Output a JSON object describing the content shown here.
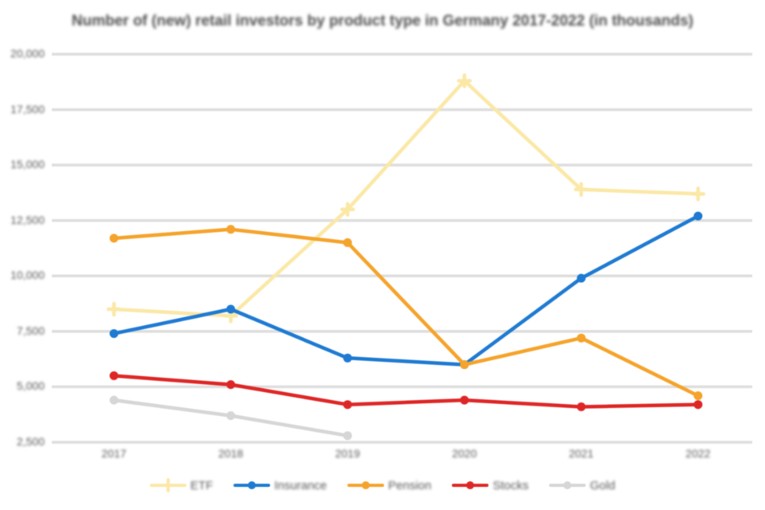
{
  "chart": {
    "title": "Number of (new) retail investors by product type in Germany 2017-2022 (in thousands)",
    "background_color": "#ffffff",
    "title_color": "#4f4f4f",
    "axis_text_color": "#595959",
    "gridline_color": "#dedede"
  },
  "chart_data": {
    "type": "line",
    "title": "Number of (new) retail investors by product type in Germany 2017-2022 (in thousands)",
    "categories": [
      "2017",
      "2018",
      "2019",
      "2020",
      "2021",
      "2022"
    ],
    "series": [
      {
        "name": "ETF",
        "color": "#FBE8A6",
        "marker": "plus",
        "values": [
          8500,
          8200,
          13000,
          18800,
          13900,
          13700
        ]
      },
      {
        "name": "Insurance",
        "color": "#1E7AD2",
        "marker": "circle",
        "values": [
          7400,
          8500,
          6300,
          6000,
          9900,
          12700
        ]
      },
      {
        "name": "Pension",
        "color": "#F5A32A",
        "marker": "circle",
        "values": [
          11700,
          12100,
          11500,
          6000,
          7200,
          4600
        ]
      },
      {
        "name": "Stocks",
        "color": "#DF2626",
        "marker": "circle",
        "values": [
          5500,
          5100,
          4200,
          4400,
          4100,
          4200
        ]
      },
      {
        "name": "Gold",
        "color": "#D6D6D6",
        "marker": "circle",
        "values": [
          4400,
          3700,
          2800,
          null,
          null,
          null
        ]
      }
    ],
    "ylim": [
      2500,
      20000
    ],
    "ytick_step": 2500,
    "ytick_labels": [
      "2,500",
      "5,000",
      "7,500",
      "10,000",
      "12,500",
      "15,000",
      "17,500",
      "20,000"
    ],
    "xlabel": "",
    "ylabel": "",
    "grid": "horizontal",
    "legend_position": "bottom"
  }
}
